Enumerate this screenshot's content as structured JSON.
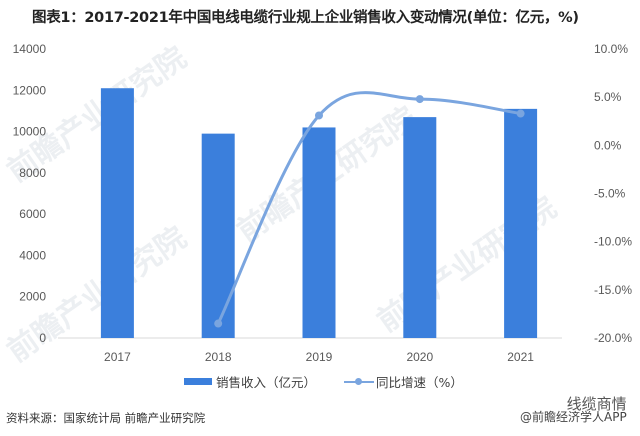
{
  "title": "图表1：2017-2021年中国电线电缆行业规上企业销售收入变动情况(单位：亿元，%)",
  "chart_data": {
    "type": "bar+line",
    "title": "图表1：2017-2021年中国电线电缆行业规上企业销售收入变动情况(单位：亿元，%)",
    "categories": [
      "2017",
      "2018",
      "2019",
      "2020",
      "2021"
    ],
    "series": [
      {
        "name": "销售收入（亿元）",
        "type": "bar",
        "axis": "left",
        "color": "#3b7fdc",
        "values": [
          12100,
          9900,
          10200,
          10700,
          11100
        ]
      },
      {
        "name": "同比增速（%）",
        "type": "line",
        "axis": "right",
        "color": "#7aa5df",
        "values": [
          null,
          -18.5,
          3.1,
          4.8,
          3.3
        ]
      }
    ],
    "left_axis": {
      "min": 0,
      "max": 14000,
      "ticks": [
        "0",
        "2000",
        "4000",
        "6000",
        "8000",
        "10000",
        "12000",
        "14000"
      ]
    },
    "right_axis": {
      "min": -20,
      "max": 10,
      "ticks": [
        "-20.0%",
        "-15.0%",
        "-10.0%",
        "-5.0%",
        "0.0%",
        "5.0%",
        "10.0%"
      ]
    },
    "grid": false,
    "legend_position": "bottom"
  },
  "legend": {
    "bar_label": "销售收入（亿元）",
    "line_label": "同比增速（%）"
  },
  "footer": {
    "source": "资料来源：国家统计局 前瞻产业研究院",
    "watermark_line1": "线缆商情",
    "watermark_line2": "@前瞻经济学人APP"
  },
  "background_watermark": "前瞻产业研究院"
}
